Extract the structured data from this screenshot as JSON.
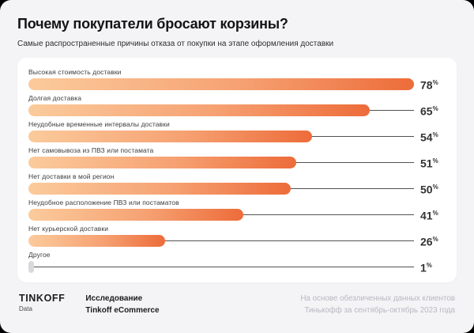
{
  "header": {
    "title": "Почему покупатели бросают корзины?",
    "subtitle": "Самые распространенные причины отказа от покупки на этапе оформления доставки"
  },
  "chart_data": {
    "type": "bar",
    "orientation": "horizontal",
    "unit": "%",
    "xlim": [
      0,
      100
    ],
    "grid": false,
    "legend": "none",
    "title": "Почему покупатели бросают корзины?",
    "subtitle": "Самые распространенные причины отказа от покупки на этапе оформления доставки",
    "categories": [
      "Высокая стоимость доставки",
      "Долгая доставка",
      "Неудобные временные интервалы доставки",
      "Нет самовывоза из ПВЗ или постамата",
      "Нет доставки в мой регион",
      "Неудобное расположение ПВЗ или постаматов",
      "Нет курьерской доставки",
      "Другое"
    ],
    "values": [
      78,
      65,
      54,
      51,
      50,
      41,
      26,
      1
    ],
    "rows": [
      {
        "label": "Высокая стоимость доставки",
        "value": 78,
        "muted": false
      },
      {
        "label": "Долгая доставка",
        "value": 65,
        "muted": false
      },
      {
        "label": "Неудобные временные интервалы доставки",
        "value": 54,
        "muted": false
      },
      {
        "label": "Нет самовывоза из ПВЗ или постамата",
        "value": 51,
        "muted": false
      },
      {
        "label": "Нет доставки в мой регион",
        "value": 50,
        "muted": false
      },
      {
        "label": "Неудобное расположение ПВЗ или постаматов",
        "value": 41,
        "muted": false
      },
      {
        "label": "Нет курьерской доставки",
        "value": 26,
        "muted": false
      },
      {
        "label": "Другое",
        "value": 1,
        "muted": true
      }
    ],
    "colors": {
      "bar_gradient_start": "#fbcb9c",
      "bar_gradient_end": "#ed6c3a",
      "bar_muted": "#d9d9dc",
      "leader_line": "#525252",
      "value_text": "#333333",
      "card_background": "#ffffff",
      "page_background": "#f4f4f6"
    }
  },
  "footer": {
    "brand_name": "TINKOFF",
    "brand_sub": "Data",
    "research_line1": "Исследование",
    "research_line2": "Tinkoff eCommerce",
    "source_line1": "На основе обезличенных данных клиентов",
    "source_line2": "Тинькофф за сентябрь-октябрь 2023 года"
  }
}
